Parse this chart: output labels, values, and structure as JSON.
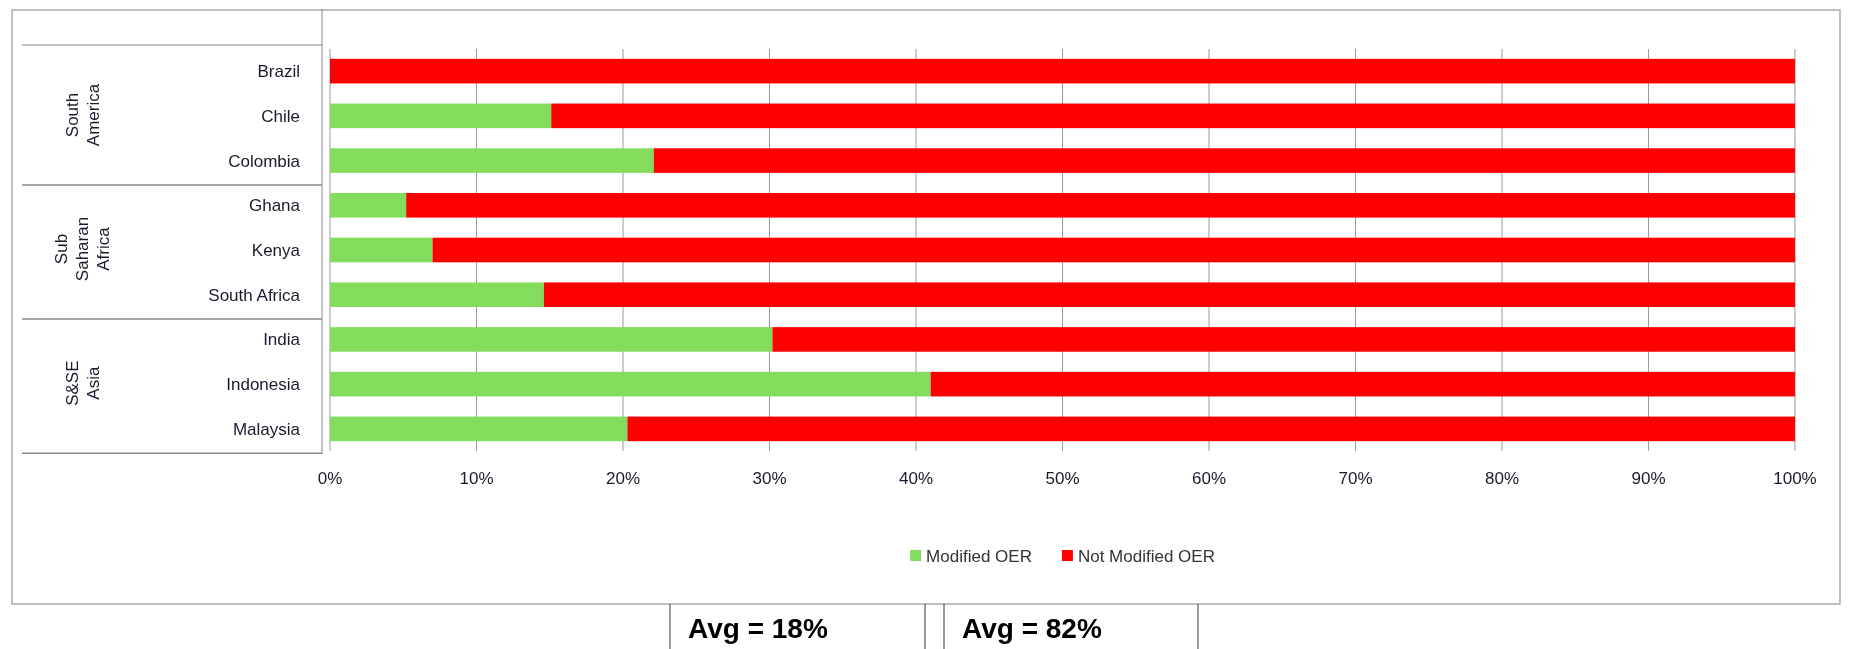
{
  "chart_data": {
    "type": "bar",
    "orientation": "horizontal",
    "stacked": true,
    "categories": [
      "Brazil",
      "Chile",
      "Colombia",
      "Ghana",
      "Kenya",
      "South Africa",
      "India",
      "Indonesia",
      "Malaysia"
    ],
    "series": [
      {
        "name": "Modified OER",
        "color": "#84dc5c",
        "values": [
          0,
          15.1,
          22.1,
          5.2,
          7.0,
          14.6,
          30.2,
          41.0,
          20.3
        ]
      },
      {
        "name": "Not Modified OER",
        "color": "#fe0000",
        "values": [
          100,
          84.9,
          77.9,
          94.8,
          93.0,
          85.4,
          69.8,
          59.0,
          79.7
        ]
      }
    ],
    "xlim": [
      0,
      100
    ],
    "xticks": [
      {
        "value": 0,
        "label": "0%"
      },
      {
        "value": 10,
        "label": "10%"
      },
      {
        "value": 20,
        "label": "20%"
      },
      {
        "value": 30,
        "label": "30%"
      },
      {
        "value": 40,
        "label": "40%"
      },
      {
        "value": 50,
        "label": "50%"
      },
      {
        "value": 60,
        "label": "60%"
      },
      {
        "value": 70,
        "label": "70%"
      },
      {
        "value": 80,
        "label": "80%"
      },
      {
        "value": 90,
        "label": "90%"
      },
      {
        "value": 100,
        "label": "100%"
      }
    ],
    "grid": "x",
    "legend": "bottom",
    "annotations": [
      "South America",
      "Sub Saharan Africa",
      "S&SE Asia",
      "Avg = 18%",
      "Avg = 82%"
    ]
  }
}
